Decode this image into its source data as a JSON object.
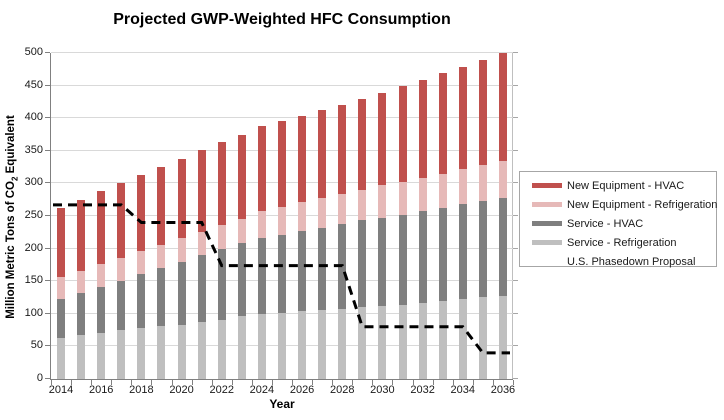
{
  "chart_data": {
    "type": "bar",
    "stacked": true,
    "title": "Projected GWP-Weighted HFC Consumption",
    "xlabel": "Year",
    "ylabel": "Million Metric Tons of CO2 Equivalent",
    "ylabel_pre": "Million Metric Tons of CO",
    "ylabel_sub": "2",
    "ylabel_post": " Equivalent",
    "ylim": [
      0,
      500
    ],
    "ytick_step": 50,
    "ytick_labels": [
      "0",
      "50",
      "100",
      "150",
      "200",
      "250",
      "300",
      "350",
      "400",
      "450",
      "500"
    ],
    "grid": true,
    "legend_position": "right",
    "categories": [
      "2014",
      "2015",
      "2016",
      "2017",
      "2018",
      "2019",
      "2020",
      "2021",
      "2022",
      "2023",
      "2024",
      "2025",
      "2026",
      "2027",
      "2028",
      "2029",
      "2030",
      "2031",
      "2032",
      "2033",
      "2034",
      "2035",
      "2036"
    ],
    "x_tick_labels": [
      "2014",
      "2016",
      "2018",
      "2020",
      "2022",
      "2024",
      "2026",
      "2028",
      "2030",
      "2032",
      "2034",
      "2036"
    ],
    "series": [
      {
        "name": "Service - Refrigeration",
        "color": "#BFBFBF",
        "values": [
          63,
          67,
          71,
          75,
          79,
          81,
          83,
          87,
          91,
          96,
          100,
          102,
          104,
          106,
          108,
          110,
          112,
          114,
          117,
          119,
          123,
          126,
          128
        ]
      },
      {
        "name": "Service - HVAC",
        "color": "#7F7F7F",
        "values": [
          59,
          65,
          70,
          76,
          82,
          90,
          97,
          103,
          108,
          113,
          116,
          119,
          123,
          126,
          130,
          134,
          135,
          138,
          141,
          144,
          145,
          147,
          150
        ]
      },
      {
        "name": "New Equipment - Refrigeration",
        "color": "#E6B9B8",
        "values": [
          34,
          34,
          35,
          35,
          35,
          35,
          36,
          36,
          37,
          37,
          41,
          43,
          45,
          46,
          46,
          46,
          50,
          50,
          50,
          51,
          54,
          55,
          57
        ]
      },
      {
        "name": "New Equipment - HVAC",
        "color": "#C0504D",
        "values": [
          106,
          108,
          112,
          115,
          117,
          119,
          122,
          125,
          127,
          129,
          131,
          132,
          132,
          134,
          137,
          140,
          142,
          147,
          151,
          155,
          157,
          161,
          165
        ]
      }
    ],
    "line_series": {
      "name": "U.S. Phasedown Proposal",
      "color": "#000000",
      "style": "dashed",
      "values": [
        267,
        267,
        267,
        267,
        240,
        240,
        240,
        240,
        174,
        174,
        174,
        174,
        174,
        174,
        174,
        80,
        80,
        80,
        80,
        80,
        80,
        40,
        40
      ]
    },
    "totals": [
      262,
      274,
      288,
      301,
      313,
      325,
      338,
      351,
      363,
      375,
      388,
      396,
      404,
      412,
      421,
      430,
      439,
      449,
      459,
      469,
      479,
      489,
      500
    ]
  },
  "legend": {
    "entries": [
      {
        "label": "New Equipment - HVAC",
        "type": "bar",
        "color": "#C0504D"
      },
      {
        "label": "New Equipment - Refrigeration",
        "type": "bar",
        "color": "#E6B9B8"
      },
      {
        "label": "Service - HVAC",
        "type": "bar",
        "color": "#7F7F7F"
      },
      {
        "label": "Service - Refrigeration",
        "type": "bar",
        "color": "#BFBFBF"
      },
      {
        "label": "U.S. Phasedown Proposal",
        "type": "dashed-line",
        "color": "#000000"
      }
    ]
  },
  "colors": {
    "gridline": "#D9D9D9",
    "axis": "#808080",
    "text": "#1a1a1a",
    "background": "#FFFFFF"
  }
}
